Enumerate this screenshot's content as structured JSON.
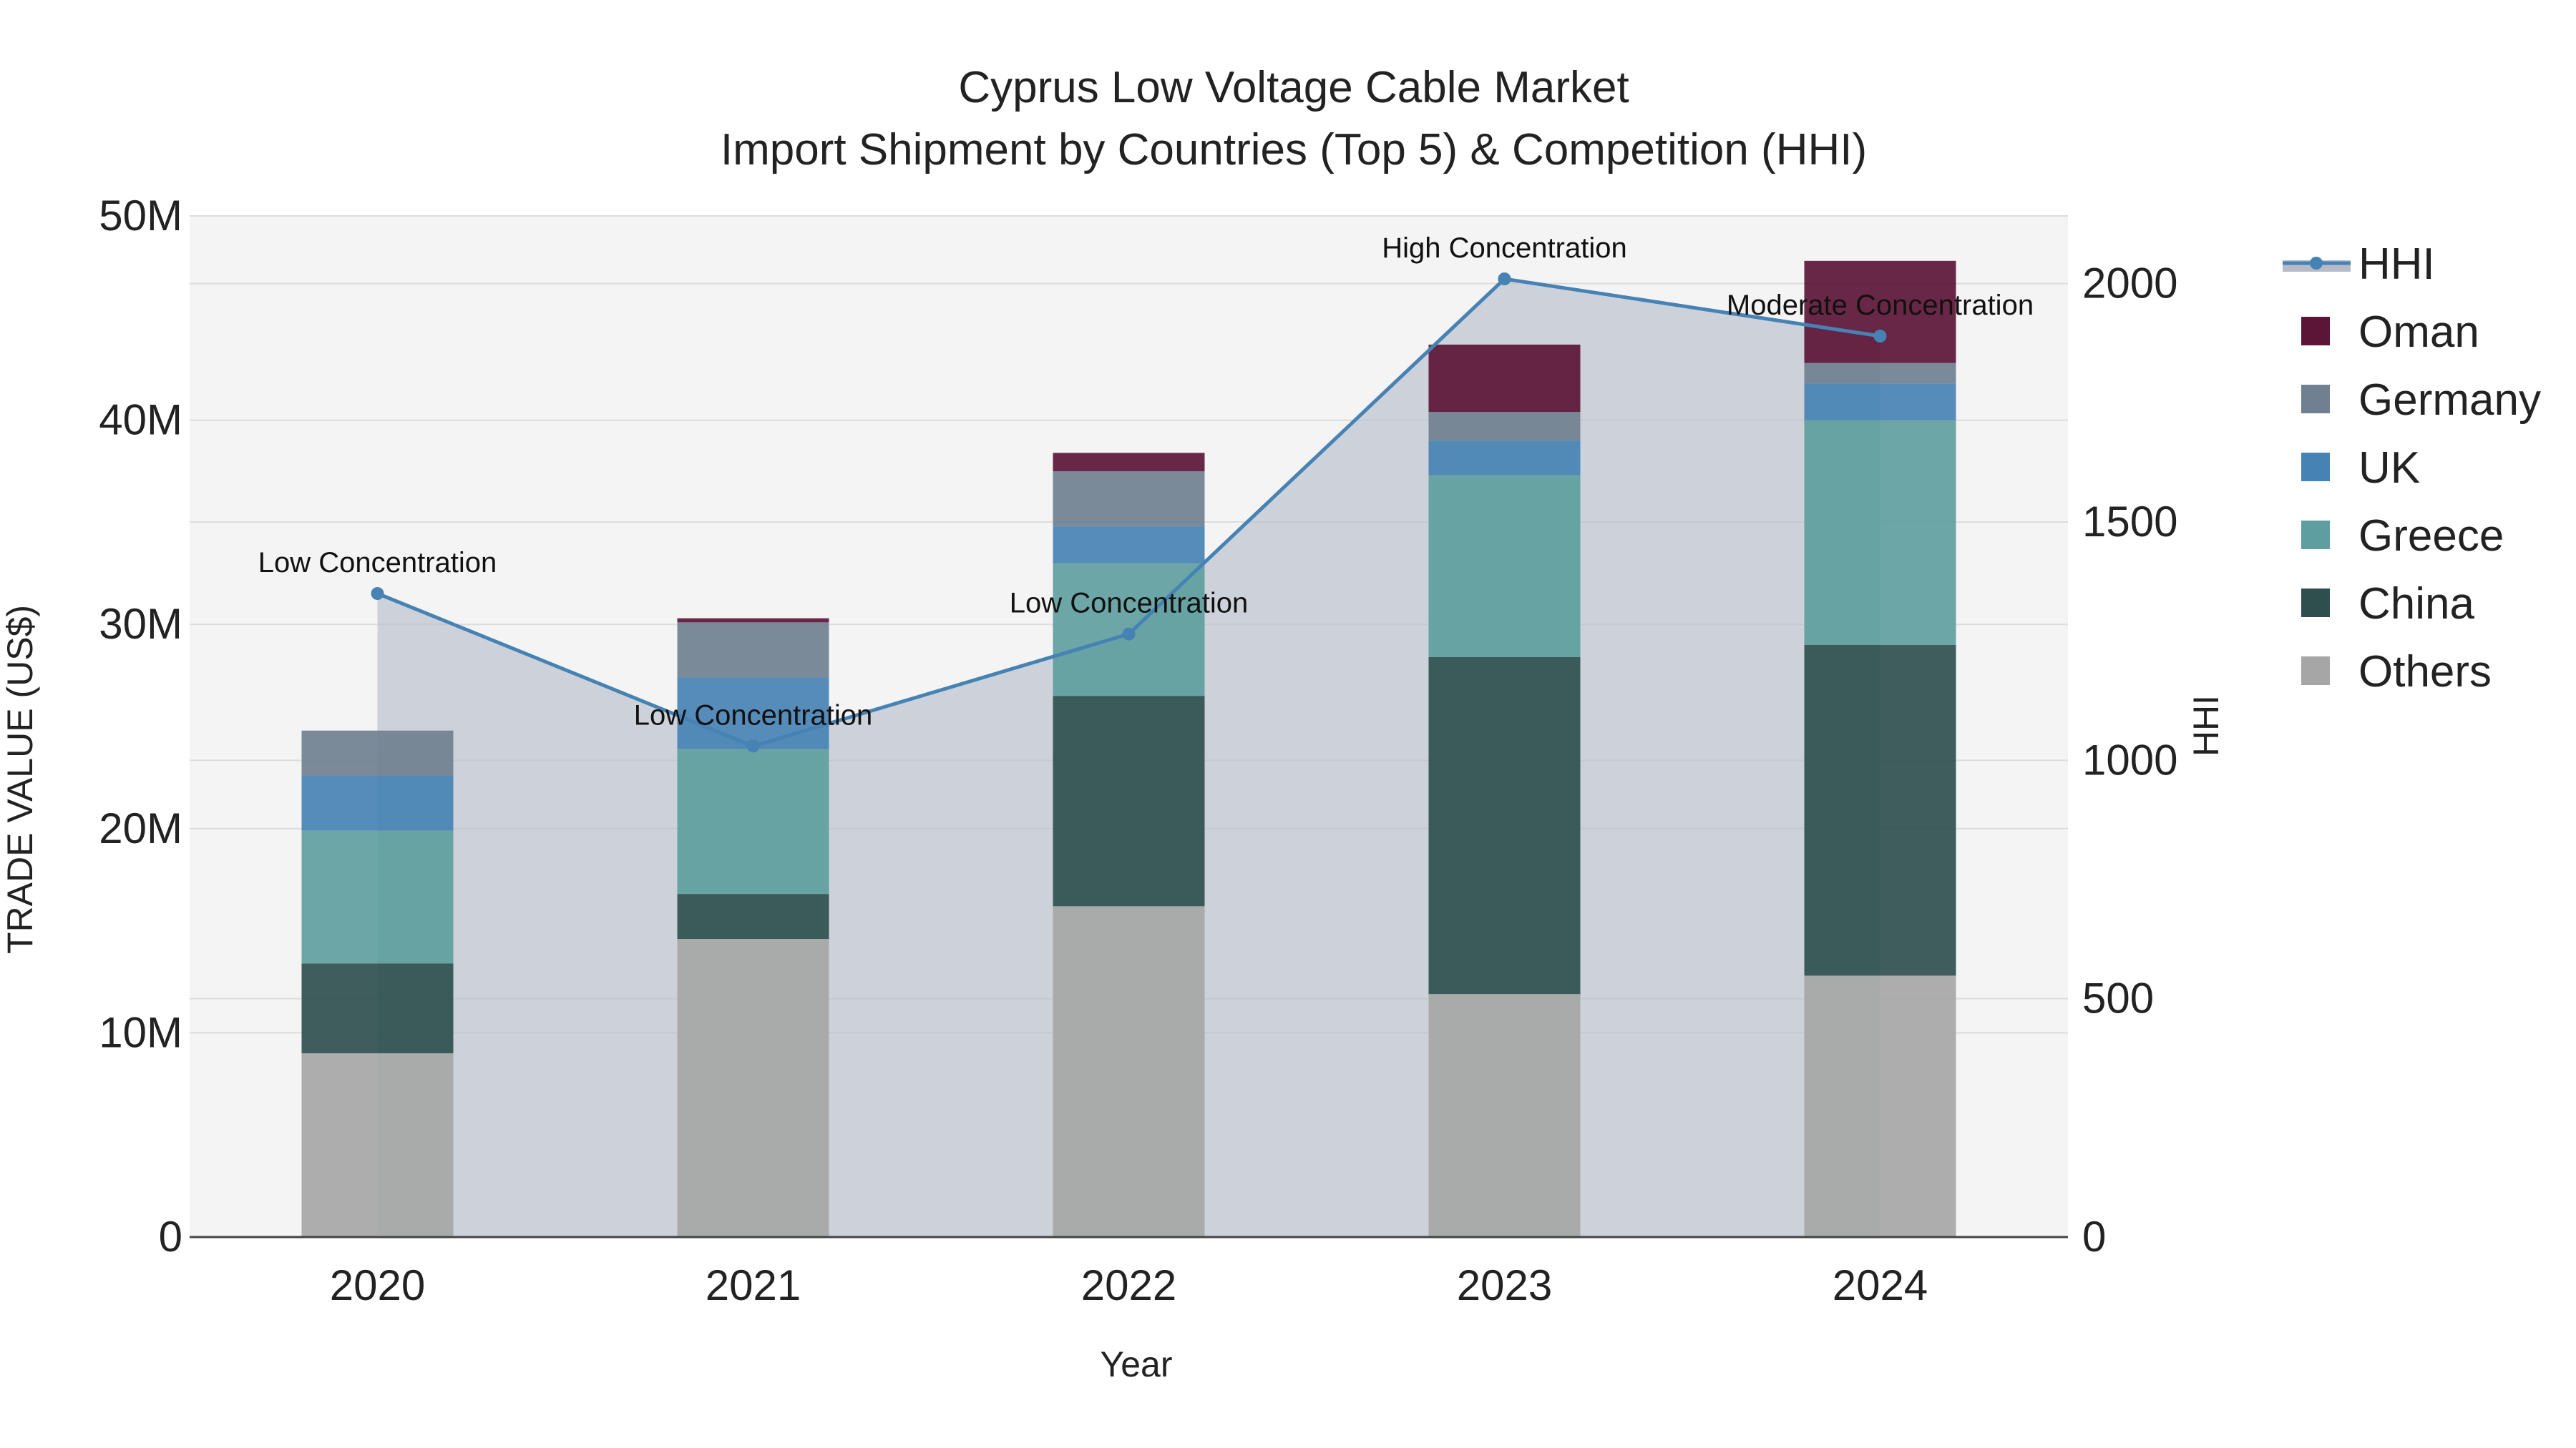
{
  "chart_data": {
    "type": "bar",
    "title_line1": "Cyprus Low Voltage Cable Market",
    "title_line2": "Import Shipment by Countries (Top 5) & Competition (HHI)",
    "xlabel": "Year",
    "ylabel": "TRADE VALUE (US$)",
    "y2label": "HHI",
    "categories": [
      "2020",
      "2021",
      "2022",
      "2023",
      "2024"
    ],
    "ylim": [
      0,
      50000000
    ],
    "y_ticks": [
      0,
      10000000,
      20000000,
      30000000,
      40000000,
      50000000
    ],
    "y_tick_labels": [
      "0",
      "10M",
      "20M",
      "30M",
      "40M",
      "50M"
    ],
    "y2lim": [
      0,
      2142
    ],
    "y2_ticks": [
      0,
      500,
      1000,
      1500,
      2000
    ],
    "y2_tick_labels": [
      "0",
      "500",
      "1000",
      "1500",
      "2000"
    ],
    "series": [
      {
        "name": "Others",
        "color": "#a6a6a6",
        "values": [
          9000000,
          14600000,
          16200000,
          11900000,
          12800000
        ]
      },
      {
        "name": "China",
        "color": "#2f4f4f",
        "values": [
          4400000,
          2200000,
          10300000,
          16500000,
          16200000
        ]
      },
      {
        "name": "Greece",
        "color": "#5f9ea0",
        "values": [
          6500000,
          7100000,
          6500000,
          8900000,
          11000000
        ]
      },
      {
        "name": "UK",
        "color": "#4682b4",
        "values": [
          2700000,
          3500000,
          1800000,
          1700000,
          1800000
        ]
      },
      {
        "name": "Germany",
        "color": "#708090",
        "values": [
          2200000,
          2700000,
          2700000,
          1400000,
          1000000
        ]
      },
      {
        "name": "Oman",
        "color": "#5c1537",
        "values": [
          0,
          200000,
          900000,
          3300000,
          5000000
        ]
      }
    ],
    "hhi": {
      "name": "HHI",
      "color": "#4682b4",
      "values": [
        1350,
        1030,
        1265,
        2010,
        1890
      ],
      "labels": [
        "Low Concentration",
        "Low Concentration",
        "Low Concentration",
        "High Concentration",
        "Moderate Concentration"
      ]
    },
    "legend": [
      "HHI",
      "Oman",
      "Germany",
      "UK",
      "Greece",
      "China",
      "Others"
    ]
  }
}
